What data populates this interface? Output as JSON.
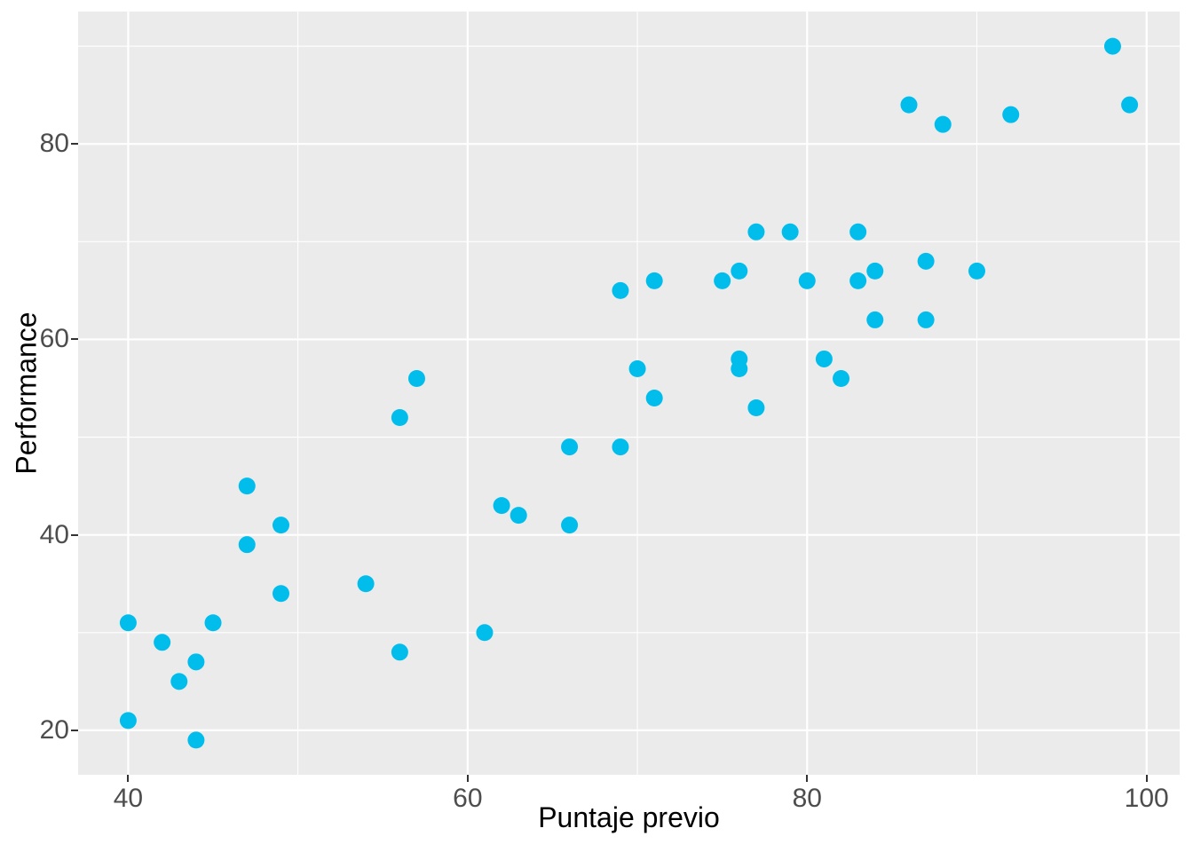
{
  "chart_data": {
    "type": "scatter",
    "title": "",
    "xlabel": "Puntaje previo",
    "ylabel": "Performance",
    "xlim": [
      37.05,
      101.95
    ],
    "ylim": [
      15.45,
      93.55
    ],
    "x_ticks": [
      40,
      60,
      80,
      100
    ],
    "x_minor_gridlines": [
      50,
      70,
      90
    ],
    "y_ticks": [
      20,
      40,
      60,
      80
    ],
    "y_minor_gridlines": [
      30,
      50,
      70,
      90
    ],
    "grid": "on",
    "legend": "none",
    "panel_background": "#EBEBEB",
    "gridline_color": "#FFFFFF",
    "point_color": "#00BDEC",
    "tick_label_color": "#4D4D4D",
    "axis_title_color": "#000000",
    "points": [
      [
        40,
        21
      ],
      [
        40,
        31
      ],
      [
        42,
        29
      ],
      [
        43,
        25
      ],
      [
        44,
        19
      ],
      [
        44,
        27
      ],
      [
        45,
        31
      ],
      [
        47,
        39
      ],
      [
        47,
        45
      ],
      [
        49,
        34
      ],
      [
        49,
        41
      ],
      [
        54,
        35
      ],
      [
        56,
        28
      ],
      [
        56,
        52
      ],
      [
        57,
        56
      ],
      [
        61,
        30
      ],
      [
        62,
        43
      ],
      [
        63,
        42
      ],
      [
        66,
        41
      ],
      [
        66,
        49
      ],
      [
        69,
        49
      ],
      [
        69,
        65
      ],
      [
        70,
        57
      ],
      [
        71,
        54
      ],
      [
        71,
        66
      ],
      [
        75,
        66
      ],
      [
        76,
        57
      ],
      [
        76,
        58
      ],
      [
        76,
        67
      ],
      [
        77,
        53
      ],
      [
        77,
        71
      ],
      [
        79,
        71
      ],
      [
        80,
        66
      ],
      [
        81,
        58
      ],
      [
        82,
        56
      ],
      [
        83,
        66
      ],
      [
        83,
        71
      ],
      [
        84,
        62
      ],
      [
        84,
        67
      ],
      [
        86,
        84
      ],
      [
        87,
        62
      ],
      [
        87,
        68
      ],
      [
        88,
        82
      ],
      [
        90,
        67
      ],
      [
        92,
        83
      ],
      [
        98,
        90
      ],
      [
        99,
        84
      ]
    ]
  }
}
